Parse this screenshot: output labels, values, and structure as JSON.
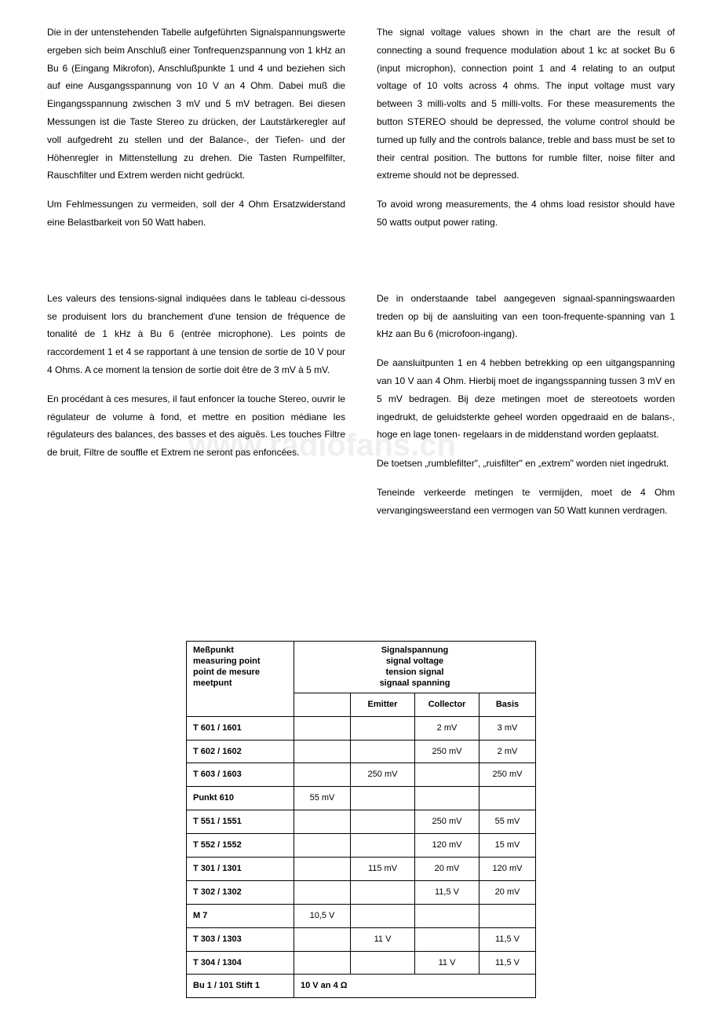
{
  "top": {
    "de_p1": "Die in der untenstehenden Tabelle aufgeführten Signalspannungswerte ergeben sich beim Anschluß einer Tonfrequenzspannung von 1 kHz an Bu 6 (Eingang Mikrofon), Anschlußpunkte 1 und 4 und beziehen sich auf eine Ausgangsspannung von 10 V an 4 Ohm. Dabei muß die Eingangsspannung zwischen 3 mV und 5 mV betragen. Bei diesen Messungen ist die Taste Stereo zu drücken, der Lautstärkeregler auf voll aufgedreht zu stellen und der Balance-, der Tiefen- und der Höhenregler in Mittenstellung zu drehen. Die Tasten Rumpelfilter, Rauschfilter und Extrem werden nicht gedrückt.",
    "de_p2": "Um Fehlmessungen zu vermeiden, soll der 4 Ohm Ersatzwiderstand eine Belastbarkeit von 50 Watt haben.",
    "en_p1": "The signal voltage values shown in the chart are the result of connecting a sound frequence modulation about 1 kc at socket Bu 6 (input microphon), connection point 1 and 4 relating to an output voltage of 10 volts across 4 ohms. The input voltage must vary between 3 milli-volts and 5 milli-volts. For these measurements the button STEREO should be depressed, the volume control should be turned up fully and the controls balance, treble and bass must be set to their central position. The buttons for rumble filter, noise filter and extreme should not be depressed.",
    "en_p2": "To avoid wrong measurements, the 4 ohms load resistor should have 50 watts output power rating."
  },
  "mid": {
    "fr_p1": "Les valeurs des tensions-signal indiquées dans le tableau ci-dessous se produisent lors du branchement d'une tension de fréquence de tonalité de 1 kHz à Bu 6 (entrée microphone). Les points de raccordement 1 et 4 se rapportant à une tension de sortie de 10 V pour 4 Ohms. A ce moment la tension de sortie doit être de 3 mV à 5 mV.",
    "fr_p2": "En procédant à ces mesures, il faut enfoncer la touche Stereo, ouvrir le régulateur de volume à fond, et mettre en position médiane les régulateurs des balances, des basses et des aiguës. Les touches Filtre de bruit, Filtre de souffle et Extrem ne seront pas enfoncées.",
    "nl_p1": "De in onderstaande tabel aangegeven signaal-spanningswaarden treden op bij de aansluiting van een toon-frequente-spanning van 1 kHz aan Bu 6 (microfoon-ingang).",
    "nl_p2": "De aansluitpunten 1 en 4 hebben betrekking op een uitgangspanning van 10 V aan 4 Ohm. Hierbij moet de ingangsspanning tussen 3 mV en 5 mV bedragen. Bij deze metingen moet de stereotoets worden ingedrukt, de geluidsterkte geheel worden opgedraaid en de balans-, hoge en lage tonen- regelaars in de middenstand worden geplaatst.",
    "nl_p3": "De toetsen „rumblefilter\", „ruisfilter\" en „extrem\" worden niet ingedrukt.",
    "nl_p4": "Teneinde verkeerde metingen te vermijden, moet de 4 Ohm vervangingsweerstand een vermogen van 50 Watt kunnen verdragen."
  },
  "table": {
    "hdr_left_l1": "Meßpunkt",
    "hdr_left_l2": "measuring point",
    "hdr_left_l3": "point de mesure",
    "hdr_left_l4": "meetpunt",
    "hdr_right_l1": "Signalspannung",
    "hdr_right_l2": "signal voltage",
    "hdr_right_l3": "tension signal",
    "hdr_right_l4": "signaal spanning",
    "sub_emitter": "Emitter",
    "sub_collector": "Collector",
    "sub_basis": "Basis",
    "rows": [
      {
        "p": "T 601 / 1601",
        "a": "",
        "e": "",
        "c": "2 mV",
        "b": "3 mV"
      },
      {
        "p": "T 602 / 1602",
        "a": "",
        "e": "",
        "c": "250 mV",
        "b": "2 mV"
      },
      {
        "p": "T 603 / 1603",
        "a": "",
        "e": "250 mV",
        "c": "",
        "b": "250 mV"
      },
      {
        "p": "Punkt 610",
        "a": "55 mV",
        "e": "",
        "c": "",
        "b": ""
      },
      {
        "p": "T 551 / 1551",
        "a": "",
        "e": "",
        "c": "250 mV",
        "b": "55 mV"
      },
      {
        "p": "T 552 / 1552",
        "a": "",
        "e": "",
        "c": "120 mV",
        "b": "15 mV"
      },
      {
        "p": "T 301 / 1301",
        "a": "",
        "e": "115 mV",
        "c": "20 mV",
        "b": "120 mV"
      },
      {
        "p": "T 302 / 1302",
        "a": "",
        "e": "",
        "c": "11,5 V",
        "b": "20 mV"
      },
      {
        "p": "M 7",
        "a": "10,5 V",
        "e": "",
        "c": "",
        "b": ""
      },
      {
        "p": "T 303 / 1303",
        "a": "",
        "e": "11 V",
        "c": "",
        "b": "11,5 V"
      },
      {
        "p": "T 304 / 1304",
        "a": "",
        "e": "",
        "c": "11 V",
        "b": "11,5 V"
      }
    ],
    "footer_label": "Bu 1 / 101 Stift 1",
    "footer_value": "10 V an  4 Ω"
  },
  "watermark": "www.radiofans.cn"
}
